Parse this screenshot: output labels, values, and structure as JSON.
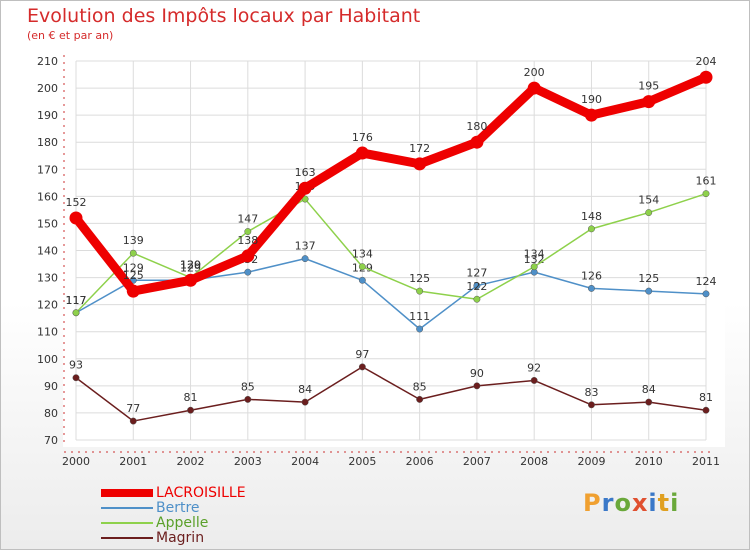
{
  "header": {
    "title": "Evolution des Impôts locaux par Habitant",
    "subtitle": "(en € et par an)"
  },
  "logo": {
    "text": "Proxiti"
  },
  "chart_data": {
    "type": "line",
    "title": "Evolution des Impôts locaux par Habitant",
    "subtitle": "(en € et par an)",
    "xlabel": "",
    "ylabel": "",
    "x": [
      "2000",
      "2001",
      "2002",
      "2003",
      "2004",
      "2005",
      "2006",
      "2007",
      "2008",
      "2009",
      "2010",
      "2011"
    ],
    "ylim": [
      70,
      210
    ],
    "yticks": [
      "70",
      "80",
      "90",
      "100",
      "110",
      "120",
      "130",
      "140",
      "150",
      "160",
      "170",
      "180",
      "190",
      "200",
      "210"
    ],
    "grid": true,
    "legend_position": "bottom-left",
    "series": [
      {
        "name": "LACROISILLE",
        "color": "#ee0000",
        "values": [
          152,
          125,
          129,
          138,
          163,
          176,
          172,
          180,
          200,
          190,
          195,
          204
        ],
        "labels": [
          "152",
          "125",
          "129",
          "138",
          "163",
          "176",
          "172",
          "180",
          "200",
          "190",
          "195",
          "204"
        ]
      },
      {
        "name": "Bertre",
        "color": "#4f90c8",
        "values": [
          117,
          129,
          129,
          132,
          137,
          129,
          111,
          127,
          132,
          126,
          125,
          124
        ],
        "labels": [
          "117",
          "129",
          "129",
          "132",
          "137",
          "129",
          "111",
          "127",
          "132",
          "126",
          "125",
          "124"
        ]
      },
      {
        "name": "Appelle",
        "color": "#8ed14b",
        "values": [
          117,
          139,
          130,
          147,
          159,
          134,
          125,
          122,
          134,
          148,
          154,
          161
        ],
        "labels": [
          "117",
          "139",
          "130",
          "147",
          "159",
          "134",
          "125",
          "122",
          "134",
          "148",
          "154",
          "161"
        ]
      },
      {
        "name": "Magrin",
        "color": "#6b1e1e",
        "values": [
          93,
          77,
          81,
          85,
          84,
          97,
          85,
          90,
          92,
          83,
          84,
          81
        ],
        "labels": [
          "93",
          "77",
          "81",
          "85",
          "84",
          "97",
          "85",
          "90",
          "92",
          "83",
          "84",
          "81"
        ]
      }
    ]
  }
}
